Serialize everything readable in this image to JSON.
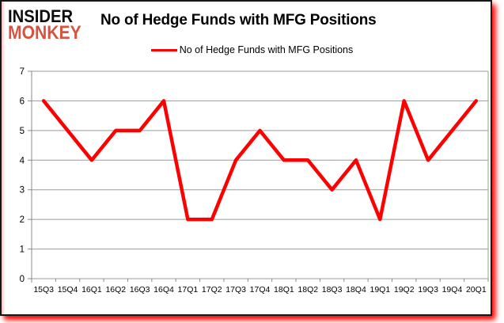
{
  "logo": {
    "line1": "INSIDER",
    "line2": "MONKEY"
  },
  "title": "No of Hedge Funds with MFG Positions",
  "legend": {
    "label": "No of Hedge Funds with MFG Positions"
  },
  "colors": {
    "series_line": "#FF0000",
    "logo_red": "#d9513f",
    "grid": "#9b9b9b",
    "axis": "#8a8a8a",
    "tick_text": "#000000",
    "frame_border": "#161616",
    "glow": "#FF0000"
  },
  "chart_data": {
    "type": "line",
    "title": "No of Hedge Funds with MFG Positions",
    "series": [
      {
        "name": "No of Hedge Funds with MFG Positions",
        "values": [
          6,
          5,
          4,
          5,
          5,
          6,
          2,
          2,
          4,
          5,
          4,
          4,
          3,
          4,
          2,
          6,
          4,
          5,
          6
        ]
      }
    ],
    "categories": [
      "15Q3",
      "15Q4",
      "16Q1",
      "16Q2",
      "16Q3",
      "16Q4",
      "17Q1",
      "17Q2",
      "17Q3",
      "17Q4",
      "18Q1",
      "18Q2",
      "18Q3",
      "18Q4",
      "19Q1",
      "19Q2",
      "19Q3",
      "19Q4",
      "20Q1"
    ],
    "xlabel": "",
    "ylabel": "",
    "ylim": [
      0,
      7
    ],
    "yticks": [
      0,
      1,
      2,
      3,
      4,
      5,
      6,
      7
    ],
    "grid": true,
    "legend_position": "top"
  }
}
